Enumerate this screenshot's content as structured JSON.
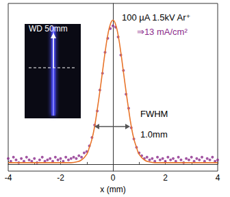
{
  "chart_data": {
    "type": "scatter",
    "x_label": "x (mm)",
    "xlim": [
      -4,
      4
    ],
    "xticks": [
      -4,
      -2,
      0,
      2,
      4
    ],
    "ylim": [
      -0.05,
      1.15
    ],
    "grid": false,
    "tick_labels": "x",
    "series": [
      {
        "type": "scatter",
        "color": "#8b2a8b",
        "marker": "circle",
        "x": [
          -4.0,
          -3.9,
          -3.8,
          -3.7,
          -3.6,
          -3.5,
          -3.4,
          -3.3,
          -3.2,
          -3.1,
          -3.0,
          -2.9,
          -2.8,
          -2.7,
          -2.6,
          -2.5,
          -2.4,
          -2.3,
          -2.2,
          -2.1,
          -2.0,
          -1.9,
          -1.8,
          -1.7,
          -1.6,
          -1.5,
          -1.4,
          -1.3,
          -1.2,
          -1.1,
          -1.0,
          -0.9,
          -0.8,
          -0.7,
          -0.6,
          -0.5,
          -0.4,
          -0.3,
          -0.2,
          -0.1,
          0.0,
          0.1,
          0.2,
          0.3,
          0.4,
          0.5,
          0.6,
          0.7,
          0.8,
          0.9,
          1.0,
          1.1,
          1.2,
          1.3,
          1.4,
          1.5,
          1.6,
          1.7,
          1.8,
          1.9,
          2.0,
          2.1,
          2.2,
          2.3,
          2.4,
          2.5,
          2.6,
          2.7,
          2.8,
          2.9,
          3.0,
          3.1,
          3.2,
          3.3,
          3.4,
          3.5,
          3.6,
          3.7,
          3.8,
          3.9,
          4.0
        ],
        "values": [
          0.04,
          0.02,
          0.05,
          0.03,
          0.01,
          0.04,
          0.02,
          0.05,
          0.03,
          0.02,
          0.04,
          0.01,
          0.03,
          0.05,
          0.02,
          0.03,
          0.04,
          0.02,
          0.05,
          0.03,
          0.04,
          0.02,
          0.05,
          0.03,
          0.04,
          0.05,
          0.04,
          0.06,
          0.05,
          0.08,
          0.09,
          0.13,
          0.19,
          0.28,
          0.38,
          0.53,
          0.65,
          0.8,
          0.9,
          0.97,
          0.99,
          0.98,
          0.91,
          0.78,
          0.67,
          0.5,
          0.4,
          0.26,
          0.18,
          0.12,
          0.08,
          0.06,
          0.04,
          0.05,
          0.03,
          0.04,
          0.02,
          0.05,
          0.03,
          0.04,
          0.02,
          0.05,
          0.03,
          0.04,
          0.02,
          0.05,
          0.03,
          0.01,
          0.04,
          0.03,
          0.05,
          0.02,
          0.04,
          0.03,
          0.05,
          0.02,
          0.04,
          0.03,
          0.05,
          0.02,
          0.03
        ]
      },
      {
        "type": "line",
        "color": "#e8742a",
        "line_style": "solid",
        "x": [
          -4,
          -3,
          -2,
          -1.6,
          -1.4,
          -1.2,
          -1.0,
          -0.9,
          -0.8,
          -0.7,
          -0.6,
          -0.5,
          -0.4,
          -0.3,
          -0.2,
          -0.1,
          0,
          0.1,
          0.2,
          0.3,
          0.4,
          0.5,
          0.6,
          0.7,
          0.8,
          0.9,
          1.0,
          1.2,
          1.4,
          1.6,
          2,
          3,
          4
        ],
        "values": [
          0.01,
          0.01,
          0.01,
          0.01,
          0.015,
          0.03,
          0.07,
          0.12,
          0.18,
          0.27,
          0.39,
          0.52,
          0.66,
          0.8,
          0.92,
          1.0,
          1.03,
          1.0,
          0.92,
          0.8,
          0.66,
          0.52,
          0.39,
          0.27,
          0.18,
          0.12,
          0.07,
          0.03,
          0.015,
          0.01,
          0.01,
          0.01,
          0.01
        ]
      }
    ],
    "annotations": [
      {
        "text": "100 µA 1.5kV Ar⁺",
        "color": "#000000"
      },
      {
        "text": "⇒13 mA/cm²",
        "color": "#8b2a8b"
      },
      {
        "text": "FWHM",
        "color": "#000000"
      },
      {
        "text": "1.0mm",
        "color": "#000000"
      }
    ],
    "inset": {
      "text": "WD 50mm",
      "color": "#ffffff"
    }
  }
}
